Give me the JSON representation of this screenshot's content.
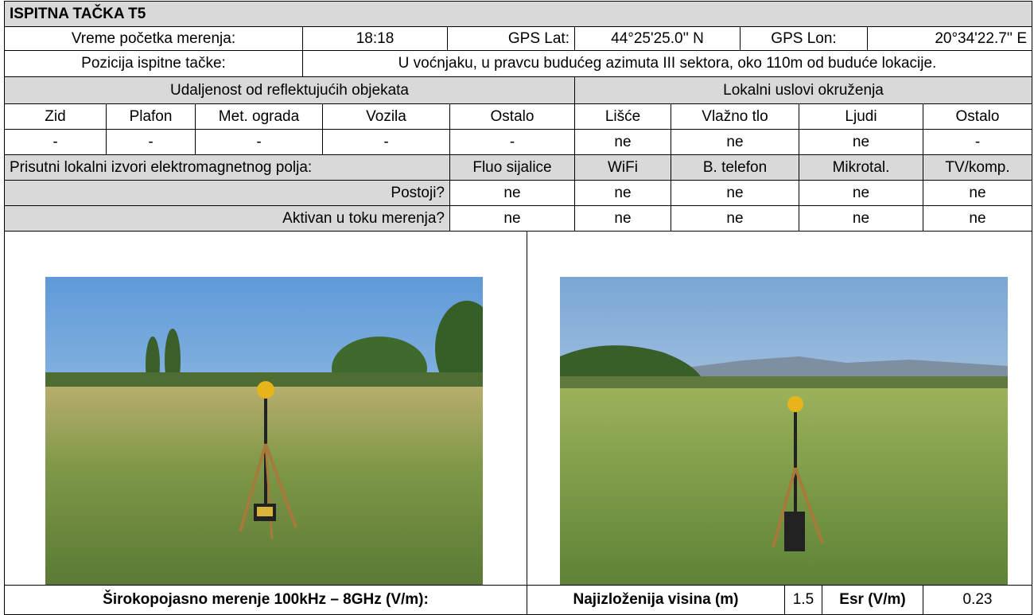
{
  "header": {
    "title": "ISPITNA TAČKA T5"
  },
  "info": {
    "start_time_label": "Vreme početka merenja:",
    "start_time": "18:18",
    "gps_lat_label": "GPS Lat:",
    "gps_lat": "44°25'25.0'' N",
    "gps_lon_label": "GPS Lon:",
    "gps_lon": "20°34'22.7'' E",
    "position_label": "Pozicija ispitne tačke:",
    "position": "U voćnjaku, u pravcu budućeg azimuta III sektora, oko 110m od buduće lokacije."
  },
  "reflective": {
    "title": "Udaljenost od reflektujućih objekata",
    "columns": [
      "Zid",
      "Plafon",
      "Met. ograda",
      "Vozila",
      "Ostalo"
    ],
    "values": [
      "-",
      "-",
      "-",
      "-",
      "-"
    ]
  },
  "environment": {
    "title": "Lokalni uslovi okruženja",
    "columns": [
      "Lišće",
      "Vlažno tlo",
      "Ljudi",
      "Ostalo"
    ],
    "values": [
      "ne",
      "ne",
      "ne",
      "-"
    ]
  },
  "sources": {
    "title": "Prisutni lokalni izvori elektromagnetnog polja:",
    "columns": [
      "Fluo sijalice",
      "WiFi",
      "B. telefon",
      "Mikrotal.",
      "TV/komp."
    ],
    "rows": [
      {
        "label": "Postoji?",
        "values": [
          "ne",
          "ne",
          "ne",
          "ne",
          "ne"
        ]
      },
      {
        "label": "Aktivan u toku merenja?",
        "values": [
          "ne",
          "ne",
          "ne",
          "ne",
          "ne"
        ]
      }
    ]
  },
  "measurement": {
    "label": "Širokopojasno merenje 100kHz – 8GHz (V/m):",
    "height_label": "Najizloženija visina (m)",
    "height": 1.5,
    "esr_label": "Esr (V/m)",
    "esr": 0.23
  }
}
